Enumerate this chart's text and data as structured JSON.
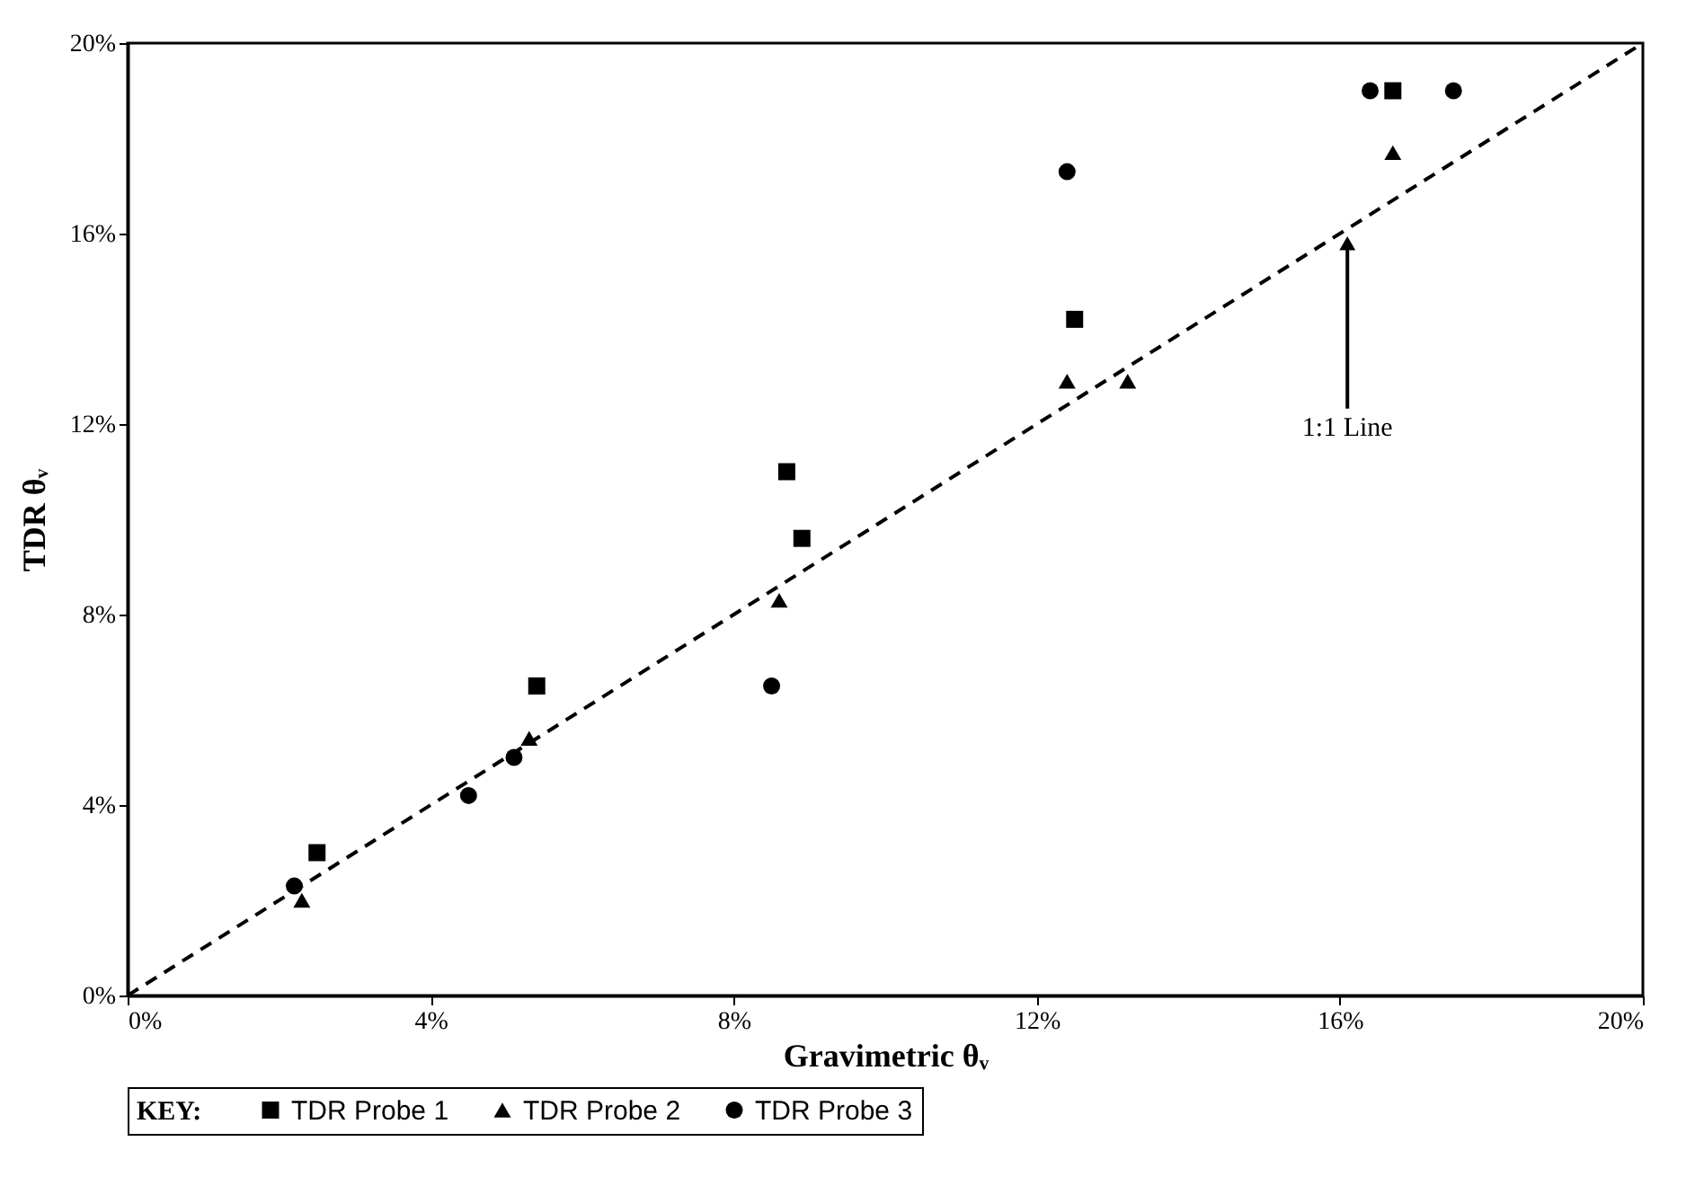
{
  "chart_data": {
    "type": "scatter",
    "xlabel": "Gravimetric θᵥ",
    "ylabel": "TDR θᵥ",
    "legend_title": "KEY:",
    "legend": "bottom",
    "grid": false,
    "xlim": [
      0,
      20
    ],
    "ylim": [
      0,
      20
    ],
    "xticks": [
      {
        "value": 0,
        "label": "0%"
      },
      {
        "value": 4,
        "label": "4%"
      },
      {
        "value": 8,
        "label": "8%"
      },
      {
        "value": 12,
        "label": "12%"
      },
      {
        "value": 16,
        "label": "16%"
      },
      {
        "value": 20,
        "label": "20%"
      }
    ],
    "yticks": [
      {
        "value": 0,
        "label": "0%"
      },
      {
        "value": 4,
        "label": "4%"
      },
      {
        "value": 8,
        "label": "8%"
      },
      {
        "value": 12,
        "label": "12%"
      },
      {
        "value": 16,
        "label": "16%"
      },
      {
        "value": 20,
        "label": "20%"
      }
    ],
    "series": [
      {
        "name": "TDR Probe 1",
        "color": "#000000",
        "marker": "square",
        "x": [
          2.5,
          5.4,
          8.7,
          8.9,
          12.5,
          16.7
        ],
        "values": [
          3.0,
          6.5,
          11.0,
          9.6,
          14.2,
          19.0
        ]
      },
      {
        "name": "TDR Probe 2",
        "color": "#000000",
        "marker": "triangle",
        "x": [
          2.3,
          5.3,
          8.6,
          12.4,
          13.2,
          16.7
        ],
        "values": [
          2.0,
          5.4,
          8.3,
          12.9,
          12.9,
          17.7
        ]
      },
      {
        "name": "TDR Probe 3",
        "color": "#000000",
        "marker": "circle",
        "x": [
          2.2,
          4.5,
          5.1,
          8.5,
          12.4,
          16.4,
          17.5
        ],
        "values": [
          2.3,
          4.2,
          5.0,
          6.5,
          17.3,
          19.0,
          19.0
        ]
      },
      {
        "type": "line",
        "color": "#000000",
        "line_style": "dashed",
        "marker": "none",
        "x": [
          0,
          20
        ],
        "values": [
          0,
          20
        ]
      }
    ],
    "annotations": [
      {
        "text": "1:1 Line",
        "x": 16.1,
        "y": 16.1
      }
    ]
  }
}
